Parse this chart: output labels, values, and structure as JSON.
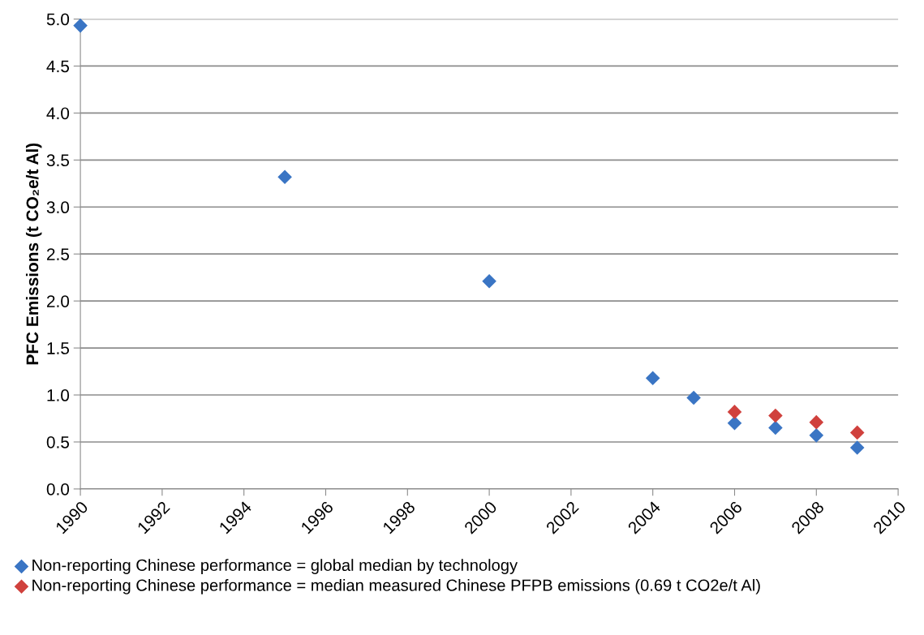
{
  "chart_data": {
    "type": "scatter",
    "ylabel": "PFC Emissions (t CO₂e/t Al)",
    "xlim": [
      1990,
      2010
    ],
    "xticks": [
      1990,
      1992,
      1994,
      1996,
      1998,
      2000,
      2002,
      2004,
      2006,
      2008,
      2010
    ],
    "ylim": [
      0,
      5
    ],
    "yticks": [
      {
        "value": 0,
        "label": "0.0"
      },
      {
        "value": 0.5,
        "label": "0.5"
      },
      {
        "value": 1,
        "label": "1.0"
      },
      {
        "value": 1.5,
        "label": "1.5"
      },
      {
        "value": 2,
        "label": "2.0"
      },
      {
        "value": 2.5,
        "label": "2.5"
      },
      {
        "value": 3,
        "label": "3.0"
      },
      {
        "value": 3.5,
        "label": "3.5"
      },
      {
        "value": 4,
        "label": "4.0"
      },
      {
        "value": 4.5,
        "label": "4.5"
      },
      {
        "value": 5,
        "label": "5.0"
      }
    ],
    "grid": "y",
    "legend": "bottom left",
    "marker": "diamond",
    "series": [
      {
        "name": "Non-reporting Chinese performance = global median by technology",
        "color": "#3a75c4",
        "x": [
          1990,
          1995,
          2000,
          2004,
          2005,
          2006,
          2007,
          2008,
          2009
        ],
        "values": [
          4.93,
          3.32,
          2.21,
          1.18,
          0.97,
          0.7,
          0.65,
          0.57,
          0.44
        ]
      },
      {
        "name": "Non-reporting Chinese performance = median measured Chinese PFPB emissions (0.69 t CO2e/t Al)",
        "color": "#d0413d",
        "x": [
          2006,
          2007,
          2008,
          2009
        ],
        "values": [
          0.82,
          0.78,
          0.71,
          0.6
        ]
      }
    ]
  }
}
